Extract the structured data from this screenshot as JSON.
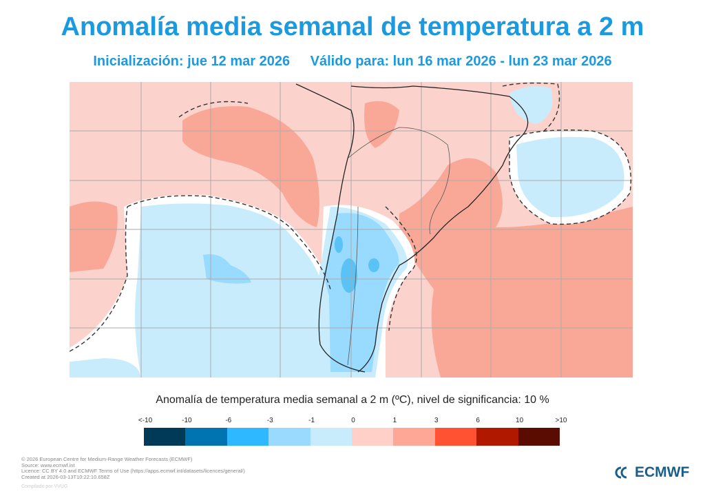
{
  "title": "Anomalía media semanal de temperatura a 2 m",
  "subtitle": {
    "init": "Inicialización: jue 12 mar 2026",
    "valid": "Válido para: lun 16 mar 2026 - lun 23 mar 2026"
  },
  "colorbar": {
    "title": "Anomalía de temperatura media semanal a 2 m (ºC), nivel de significancia: 10 %",
    "ticks": [
      "<-10",
      "-10",
      "-6",
      "-3",
      "-1",
      "0",
      "1",
      "3",
      "6",
      "10",
      ">10"
    ],
    "colors": [
      "#003a57",
      "#0074b0",
      "#2db8ff",
      "#9adaff",
      "#c9ecfd",
      "#ffd0c8",
      "#ffa797",
      "#ff5233",
      "#b01800",
      "#5a0c00"
    ]
  },
  "footer": {
    "lines": [
      "© 2026 European Centre for Medium-Range Weather Forecasts (ECMWF)",
      "Source: www.ecmwf.int",
      "Licence: CC BY 4.0 and ECMWF Terms of Use (https://apps.ecmwf.int/datasets/licences/general/)",
      "Created at 2026-03-13T10:22:10.658Z"
    ],
    "compiled": "Compilado por VVUG"
  },
  "logo": "ECMWF"
}
